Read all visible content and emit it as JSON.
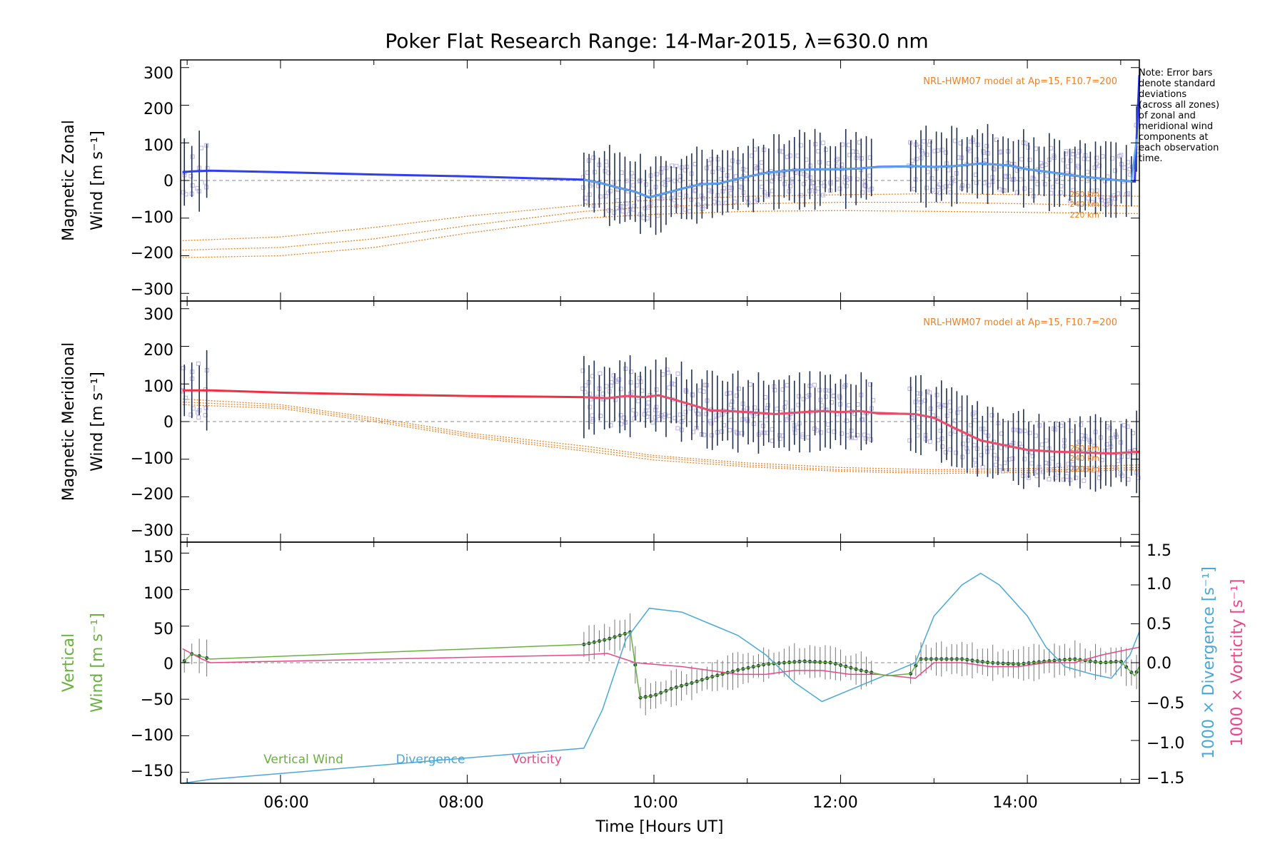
{
  "title": "Poker Flat Research Range: 14-Mar-2015, λ=630.0 nm",
  "note_lines": [
    "Note: Error bars",
    "denote standard",
    "deviations",
    "(across all zones)",
    "of zonal and",
    "meridional wind",
    "components at",
    "each observation",
    "time."
  ],
  "xlabel": "Time [Hours UT]",
  "x_ticks": [
    "06:00",
    "08:00",
    "10:00",
    "12:00",
    "14:00"
  ],
  "colors": {
    "zonal": "#2f3ff0",
    "zonal_fit": "#58a6e8",
    "meridional": "#f03040",
    "meridional_fit": "#e85070",
    "model": "#f08020",
    "vertical": "#6ab040",
    "divergence": "#4aa8d8",
    "vorticity": "#e84888",
    "zone_points": "#b8b0e8",
    "error_bar": "#203050",
    "vertical_fit": "#1e4040"
  },
  "panels": {
    "zonal": {
      "ylabel_line1": "Magnetic Zonal",
      "ylabel_line2": "Wind [m s⁻¹]",
      "model_label": "NRL-HWM07 model at Ap=15, F10.7=200",
      "y_ticks": [
        "300",
        "200",
        "100",
        "0",
        "−100",
        "−200",
        "−300"
      ],
      "alt_labels": [
        "260 km",
        "240 km",
        "220 km"
      ]
    },
    "meridional": {
      "ylabel_line1": "Magnetic Meridional",
      "ylabel_line2": "Wind [m s⁻¹]",
      "model_label": "NRL-HWM07 model at Ap=15, F10.7=200",
      "y_ticks": [
        "300",
        "200",
        "100",
        "0",
        "−100",
        "−200",
        "−300"
      ],
      "alt_labels": [
        "260 km",
        "240 km",
        "220 km"
      ]
    },
    "vertical": {
      "ylabel_line1": "Vertical",
      "ylabel_line2": "Wind [m s⁻¹]",
      "y_ticks": [
        "150",
        "100",
        "50",
        "0",
        "−50",
        "−100",
        "−150"
      ],
      "right_ticks": [
        "1.5",
        "1.0",
        "0.5",
        "0.0",
        "−0.5",
        "−1.0",
        "−1.5"
      ],
      "right_label_div": "1000 × Divergence [s⁻¹]",
      "right_label_vort": "1000 × Vorticity [s⁻¹]",
      "legend": [
        "Vertical Wind",
        "Divergence",
        "Vorticity"
      ]
    }
  },
  "chart_data": [
    {
      "type": "line",
      "title": "Poker Flat Research Range: 14-Mar-2015, λ=630.0 nm",
      "ylabel": "Magnetic Zonal Wind [m s⁻¹]",
      "xlim_hours_ut": [
        4.93,
        15.2
      ],
      "ylim": [
        -320,
        320
      ],
      "series": [
        {
          "x": [
            4.95,
            5.05,
            5.25,
            6.0,
            7.0,
            8.0,
            9.25,
            9.4,
            9.6,
            9.8,
            9.95,
            10.1,
            10.3,
            10.5,
            10.7,
            10.9,
            11.2,
            11.5,
            11.8,
            12.0,
            12.2,
            12.4,
            12.8,
            13.0,
            13.2,
            13.5,
            13.8,
            14.0,
            14.3,
            14.6,
            14.9,
            15.15,
            15.2
          ],
          "y": [
            22,
            24,
            26,
            22,
            16,
            11,
            2,
            -5,
            -18,
            -30,
            -45,
            -35,
            -22,
            -10,
            -8,
            5,
            20,
            28,
            30,
            30,
            32,
            36,
            38,
            36,
            38,
            45,
            40,
            30,
            20,
            10,
            2,
            -3,
            280
          ]
        }
      ],
      "model": [
        {
          "x": [
            4.95,
            6.0,
            7.0,
            8.0,
            9.25,
            10.0,
            11.0,
            12.0,
            13.0,
            14.0,
            15.2
          ],
          "y": [
            -160,
            -150,
            -125,
            -95,
            -65,
            -52,
            -42,
            -38,
            -35,
            -38,
            -42
          ]
        },
        {
          "x": [
            4.95,
            6.0,
            7.0,
            8.0,
            9.25,
            10.0,
            11.0,
            12.0,
            13.0,
            14.0,
            15.2
          ],
          "y": [
            -185,
            -178,
            -155,
            -120,
            -82,
            -70,
            -62,
            -58,
            -58,
            -62,
            -68
          ]
        },
        {
          "x": [
            4.95,
            6.0,
            7.0,
            8.0,
            9.25,
            10.0,
            11.0,
            12.0,
            13.0,
            14.0,
            15.2
          ],
          "y": [
            -205,
            -200,
            -178,
            -140,
            -100,
            -90,
            -82,
            -80,
            -82,
            -85,
            -88
          ]
        }
      ]
    },
    {
      "type": "line",
      "ylabel": "Magnetic Meridional Wind [m s⁻¹]",
      "xlim_hours_ut": [
        4.93,
        15.2
      ],
      "ylim": [
        -320,
        320
      ],
      "series": [
        {
          "x": [
            4.95,
            5.25,
            6.0,
            7.0,
            8.0,
            9.25,
            9.5,
            9.7,
            9.9,
            10.05,
            10.2,
            10.4,
            10.6,
            10.8,
            11.0,
            11.3,
            11.6,
            11.8,
            12.0,
            12.2,
            12.4,
            12.8,
            13.0,
            13.2,
            13.5,
            13.8,
            14.0,
            14.3,
            14.6,
            14.9,
            15.2
          ],
          "y": [
            83,
            83,
            77,
            72,
            68,
            65,
            62,
            68,
            65,
            70,
            60,
            45,
            30,
            28,
            25,
            20,
            25,
            28,
            25,
            28,
            22,
            20,
            10,
            -15,
            -50,
            -65,
            -75,
            -80,
            -82,
            -85,
            -80
          ]
        }
      ],
      "model": [
        {
          "x": [
            4.95,
            6.0,
            7.0,
            8.0,
            9.25,
            10.0,
            11.0,
            12.0,
            13.0,
            14.0,
            15.2
          ],
          "y": [
            60,
            45,
            10,
            -30,
            -65,
            -90,
            -110,
            -122,
            -128,
            -125,
            -115
          ]
        },
        {
          "x": [
            4.95,
            6.0,
            7.0,
            8.0,
            9.25,
            10.0,
            11.0,
            12.0,
            13.0,
            14.0,
            15.2
          ],
          "y": [
            52,
            40,
            5,
            -35,
            -72,
            -95,
            -115,
            -128,
            -133,
            -130,
            -122
          ]
        },
        {
          "x": [
            4.95,
            6.0,
            7.0,
            8.0,
            9.25,
            10.0,
            11.0,
            12.0,
            13.0,
            14.0,
            15.2
          ],
          "y": [
            45,
            35,
            0,
            -40,
            -78,
            -102,
            -120,
            -132,
            -138,
            -135,
            -128
          ]
        }
      ]
    },
    {
      "type": "line",
      "ylabel": "Vertical Wind [m s⁻¹]",
      "ylim": [
        -165,
        165
      ],
      "y2lim": [
        -1.55,
        1.55
      ],
      "series": [
        {
          "name": "Vertical Wind",
          "x": [
            4.95,
            5.05,
            5.25,
            9.25,
            9.5,
            9.75,
            9.85,
            10.0,
            10.2,
            10.4,
            10.6,
            10.9,
            11.2,
            11.6,
            11.9,
            12.2,
            12.5,
            12.75,
            12.85,
            13.0,
            13.3,
            13.6,
            13.9,
            14.2,
            14.5,
            14.8,
            15.0,
            15.15,
            15.2
          ],
          "y": [
            0,
            12,
            5,
            25,
            32,
            42,
            -48,
            -45,
            -35,
            -28,
            -20,
            -10,
            -2,
            2,
            0,
            -10,
            -18,
            -15,
            5,
            5,
            5,
            0,
            -2,
            2,
            5,
            0,
            2,
            -18,
            -5
          ]
        },
        {
          "name": "Divergence",
          "x": [
            4.95,
            5.25,
            9.25,
            9.45,
            9.7,
            9.95,
            10.3,
            10.6,
            10.9,
            11.2,
            11.5,
            11.8,
            12.1,
            12.5,
            12.8,
            13.0,
            13.3,
            13.5,
            13.7,
            14.0,
            14.2,
            14.4,
            14.7,
            14.9,
            15.1,
            15.2
          ],
          "y": [
            -1.55,
            -1.5,
            -1.1,
            -0.6,
            0.3,
            0.7,
            0.65,
            0.5,
            0.35,
            0.1,
            -0.25,
            -0.5,
            -0.35,
            -0.15,
            0.0,
            0.6,
            1.0,
            1.15,
            1.0,
            0.6,
            0.2,
            -0.05,
            -0.15,
            -0.2,
            0.1,
            0.4
          ]
        },
        {
          "name": "Vorticity",
          "x": [
            4.95,
            5.15,
            5.25,
            9.25,
            9.5,
            9.8,
            10.0,
            10.3,
            10.6,
            10.9,
            11.2,
            11.5,
            11.8,
            12.1,
            12.4,
            12.8,
            13.0,
            13.3,
            13.6,
            13.9,
            14.2,
            14.5,
            14.8,
            15.0,
            15.2
          ],
          "y": [
            0.18,
            0.05,
            0.0,
            0.1,
            0.12,
            0.0,
            -0.02,
            -0.05,
            -0.1,
            -0.15,
            -0.15,
            -0.1,
            -0.1,
            -0.15,
            -0.15,
            -0.2,
            0.0,
            0.0,
            -0.05,
            -0.05,
            0.0,
            0.0,
            0.1,
            0.15,
            0.2
          ]
        }
      ]
    }
  ]
}
